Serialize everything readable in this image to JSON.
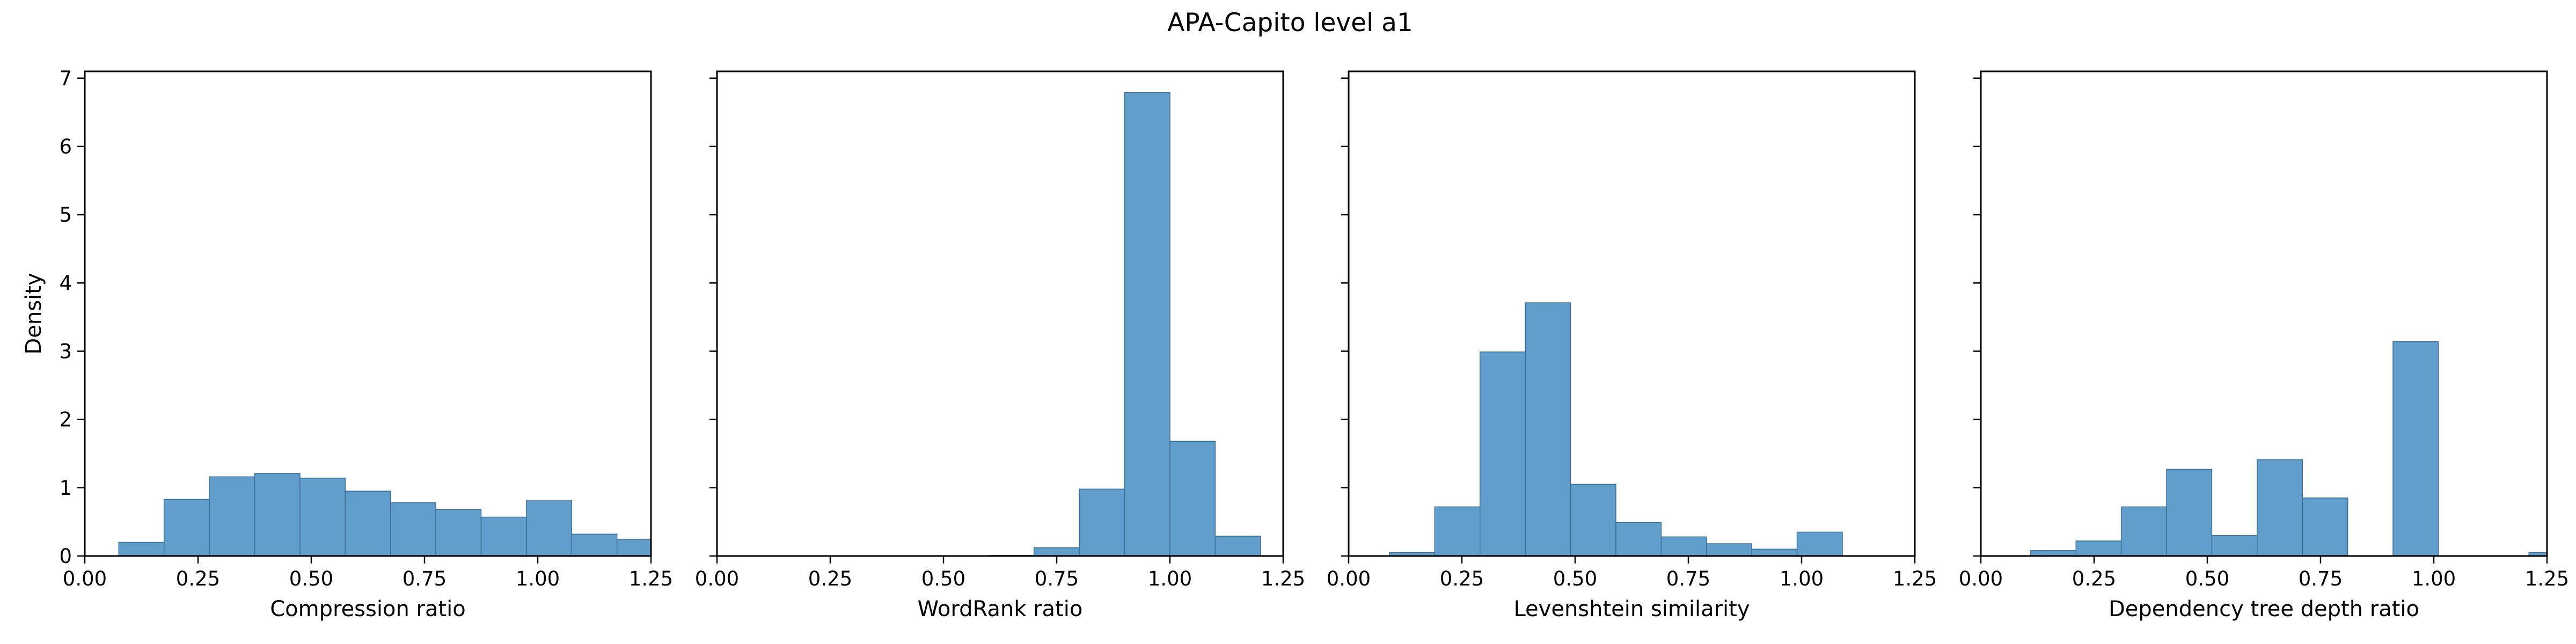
{
  "title": "APA-Capito level a1",
  "colors": {
    "bar_fill": "#4a90c4",
    "bar_edge": "#3a6f96",
    "axes": "#000000"
  },
  "chart_data": [
    {
      "type": "bar",
      "histogram": true,
      "xlabel": "Compression ratio",
      "ylabel": "Density",
      "xlim": [
        0,
        1.25
      ],
      "ylim": [
        0,
        7.1
      ],
      "xticks": [
        "0.00",
        "0.25",
        "0.50",
        "0.75",
        "1.00",
        "1.25"
      ],
      "yticks": [
        "0",
        "1",
        "2",
        "3",
        "4",
        "5",
        "6",
        "7"
      ],
      "bin_edges": [
        0.075,
        0.175,
        0.275,
        0.375,
        0.475,
        0.575,
        0.675,
        0.775,
        0.875,
        0.975,
        1.075,
        1.175,
        1.275
      ],
      "values": [
        0.2,
        0.83,
        1.16,
        1.21,
        1.14,
        0.95,
        0.78,
        0.68,
        0.57,
        0.81,
        0.32,
        0.24
      ]
    },
    {
      "type": "bar",
      "histogram": true,
      "xlabel": "WordRank ratio",
      "ylabel": "",
      "xlim": [
        0,
        1.25
      ],
      "ylim": [
        0,
        7.1
      ],
      "xticks": [
        "0.00",
        "0.25",
        "0.50",
        "0.75",
        "1.00",
        "1.25"
      ],
      "yticks": [
        "0",
        "1",
        "2",
        "3",
        "4",
        "5",
        "6",
        "7"
      ],
      "bin_edges": [
        0.6,
        0.7,
        0.8,
        0.9,
        1.0,
        1.1,
        1.2,
        1.3
      ],
      "values": [
        0.01,
        0.12,
        0.98,
        6.79,
        1.68,
        0.29,
        0.0
      ]
    },
    {
      "type": "bar",
      "histogram": true,
      "xlabel": "Levenshtein similarity",
      "ylabel": "",
      "xlim": [
        0,
        1.25
      ],
      "ylim": [
        0,
        7.1
      ],
      "xticks": [
        "0.00",
        "0.25",
        "0.50",
        "0.75",
        "1.00",
        "1.25"
      ],
      "yticks": [
        "0",
        "1",
        "2",
        "3",
        "4",
        "5",
        "6",
        "7"
      ],
      "bin_edges": [
        0.09,
        0.19,
        0.29,
        0.39,
        0.49,
        0.59,
        0.69,
        0.79,
        0.89,
        0.99,
        1.09
      ],
      "values": [
        0.05,
        0.72,
        2.99,
        3.71,
        1.05,
        0.49,
        0.28,
        0.18,
        0.1,
        0.35
      ]
    },
    {
      "type": "bar",
      "histogram": true,
      "xlabel": "Dependency tree depth ratio",
      "ylabel": "",
      "xlim": [
        0,
        1.25
      ],
      "ylim": [
        0,
        7.1
      ],
      "xticks": [
        "0.00",
        "0.25",
        "0.50",
        "0.75",
        "1.00",
        "1.25"
      ],
      "yticks": [
        "0",
        "1",
        "2",
        "3",
        "4",
        "5",
        "6",
        "7"
      ],
      "bin_edges": [
        0.11,
        0.21,
        0.31,
        0.41,
        0.51,
        0.61,
        0.71,
        0.81,
        0.91,
        1.01,
        1.11,
        1.21,
        1.31
      ],
      "values": [
        0.08,
        0.22,
        0.72,
        1.27,
        0.3,
        1.41,
        0.85,
        0.0,
        3.14,
        0.0,
        0.0,
        0.05
      ]
    }
  ]
}
